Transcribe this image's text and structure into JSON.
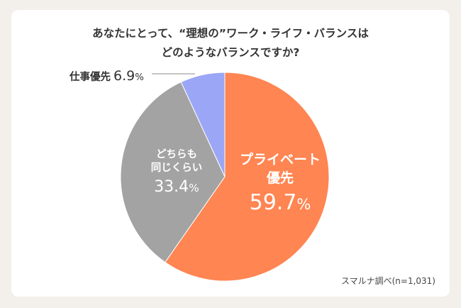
{
  "chart_data": {
    "type": "pie",
    "title": [
      "あなたにとって、“理想の”ワーク・ライフ・バランスは",
      "どのようなバランスですか?"
    ],
    "slices": [
      {
        "name": "プライベート優先",
        "value": 59.7,
        "value_label": "59.7",
        "color": "#ff8552"
      },
      {
        "name": "どちらも同じくらい",
        "value": 33.4,
        "value_label": "33.4",
        "color": "#a3a3a3"
      },
      {
        "name": "仕事優先",
        "value": 6.9,
        "value_label": "6.9",
        "color": "#9ba6f6"
      }
    ],
    "labels": {
      "private": {
        "line1": "プライベート",
        "line2": "優先",
        "value": "59.7"
      },
      "same": {
        "line1": "どちらも",
        "line2": "同じくらい",
        "value": "33.4"
      },
      "work": {
        "name": "仕事優先",
        "value": "6.9"
      }
    },
    "percent_sign": "%",
    "source": "スマルナ調べ(n=1,031)"
  }
}
